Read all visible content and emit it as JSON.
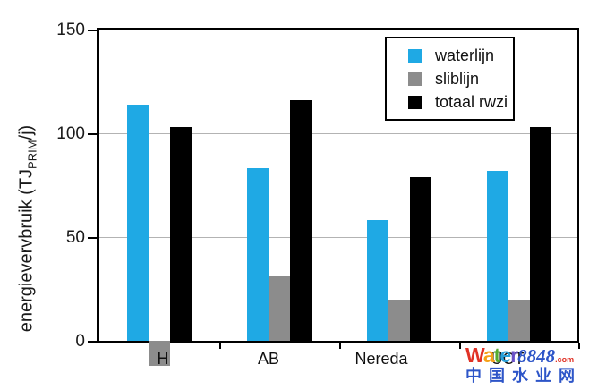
{
  "chart_data": {
    "type": "bar",
    "title": "",
    "ylabel_prefix": "energievervbruik (TJ",
    "ylabel_sub": "PRIM",
    "ylabel_suffix": "/j)",
    "xlabel": "",
    "ylim": [
      0,
      150
    ],
    "yticks": [
      0,
      50,
      100,
      150
    ],
    "gridlines_at": [
      50,
      100
    ],
    "grid": true,
    "legend_position": "top-right",
    "categories": [
      "H",
      "AB",
      "Nereda",
      "UCT"
    ],
    "series": [
      {
        "name": "waterlijn",
        "color": "#1FA9E4",
        "values": [
          114,
          83,
          58,
          82
        ]
      },
      {
        "name": "sliblijn",
        "color": "#8C8C8C",
        "values": [
          -12,
          31,
          20,
          20
        ]
      },
      {
        "name": "totaal rwzi",
        "color": "#000000",
        "values": [
          103,
          116,
          79,
          103
        ]
      }
    ]
  },
  "watermark": {
    "brand_letters": [
      {
        "ch": "W",
        "color": "#E03226"
      },
      {
        "ch": "a",
        "color": "#F6A117"
      },
      {
        "ch": "t",
        "color": "#56AB2F"
      },
      {
        "ch": "e",
        "color": "#2A9FD8"
      },
      {
        "ch": "r",
        "color": "#6A51C7"
      }
    ],
    "brand_number": "8848",
    "brand_tld": ".com",
    "tagline": "中国水业网",
    "blue": "#2D55C8",
    "red": "#E03226"
  }
}
